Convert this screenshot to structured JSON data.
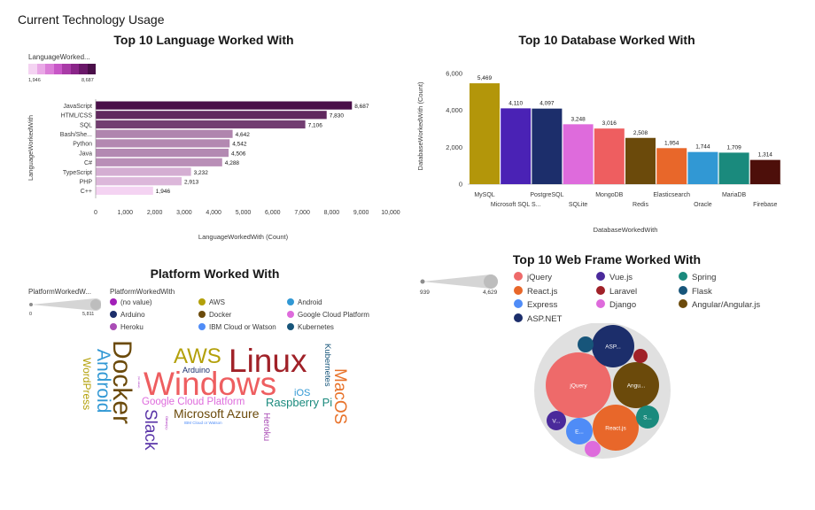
{
  "dashboard_title": "Current Technology Usage",
  "language_chart": {
    "title": "Top 10 Language Worked With",
    "legend_title": "LanguageWorked...",
    "legend_min": "1,946",
    "legend_max": "8,687",
    "ylabel": "LanguageWorkedWith",
    "xlabel": "LanguageWorkedWith (Count)"
  },
  "database_chart": {
    "title": "Top 10 Database Worked With",
    "ylabel": "DatabaseWorkedWith (Count)",
    "xlabel": "DatabaseWorkedWith"
  },
  "platform_chart": {
    "title": "Platform Worked With",
    "size_legend_title": "PlatformWorkedW...",
    "size_min": "0",
    "size_max": "5,811",
    "color_legend_title": "PlatformWorkedWith",
    "legend": [
      {
        "label": "(no value)",
        "color": "#a21fb8"
      },
      {
        "label": "AWS",
        "color": "#b3a00a"
      },
      {
        "label": "Android",
        "color": "#3198d4"
      },
      {
        "label": "Arduino",
        "color": "#1c2e6b"
      },
      {
        "label": "Docker",
        "color": "#6b4a0b"
      },
      {
        "label": "Google Cloud Platform",
        "color": "#de6bdc"
      },
      {
        "label": "Heroku",
        "color": "#a94cb5"
      },
      {
        "label": "IBM Cloud or Watson",
        "color": "#4f8cf7"
      },
      {
        "label": "Kubernetes",
        "color": "#17557a"
      }
    ],
    "words": [
      {
        "text": "Linux",
        "color": "#a02128"
      },
      {
        "text": "Windows",
        "color": "#ee5e60"
      },
      {
        "text": "Docker",
        "color": "#6b4a0b"
      },
      {
        "text": "Android",
        "color": "#3198d4"
      },
      {
        "text": "AWS",
        "color": "#b3a00a"
      },
      {
        "text": "MacOS",
        "color": "#e8722a"
      },
      {
        "text": "Slack",
        "color": "#5a35a8"
      },
      {
        "text": "Microsoft Azure",
        "color": "#6b4a0b"
      },
      {
        "text": "Google Cloud Platform",
        "color": "#de6bdc"
      },
      {
        "text": "Raspberry Pi",
        "color": "#1a8a7d"
      },
      {
        "text": "WordPress",
        "color": "#b3a00a"
      },
      {
        "text": "Kubernetes",
        "color": "#17557a"
      },
      {
        "text": "Heroku",
        "color": "#a94cb5"
      },
      {
        "text": "Arduino",
        "color": "#1c2e6b"
      },
      {
        "text": "iOS",
        "color": "#3198d4"
      },
      {
        "text": "IBM Cloud or Watson",
        "color": "#4f8cf7"
      },
      {
        "text": "Other(s):",
        "color": "#a21fb8"
      },
      {
        "text": "(no value)",
        "color": "#a21fb8"
      }
    ]
  },
  "webframe_chart": {
    "title": "Top 10 Web Frame Worked With",
    "size_min": "939",
    "size_max": "4,629",
    "legend": [
      {
        "label": "jQuery",
        "color": "#ee6a6a"
      },
      {
        "label": "Vue.js",
        "color": "#4a2a9b"
      },
      {
        "label": "Spring",
        "color": "#1a8a7d"
      },
      {
        "label": "React.js",
        "color": "#e8672a"
      },
      {
        "label": "Laravel",
        "color": "#a02128"
      },
      {
        "label": "Flask",
        "color": "#17557a"
      },
      {
        "label": "Express",
        "color": "#4f8cf7"
      },
      {
        "label": "Django",
        "color": "#de6bdc"
      },
      {
        "label": "Angular/Angular.js",
        "color": "#6b4a0b"
      },
      {
        "label": "ASP.NET",
        "color": "#1c2e6b"
      }
    ],
    "bubble_labels": {
      "jquery": "jQuery",
      "aspnet": "ASP...",
      "angular": "Angu...",
      "react": "React.js",
      "spring": "S...",
      "vue": "V...",
      "express": "E..."
    }
  },
  "chart_data": [
    {
      "type": "bar",
      "orientation": "horizontal",
      "title": "Top 10 Language Worked With",
      "xlabel": "LanguageWorkedWith (Count)",
      "ylabel": "LanguageWorkedWith",
      "categories": [
        "JavaScript",
        "HTML/CSS",
        "SQL",
        "Bash/She...",
        "Python",
        "Java",
        "C#",
        "TypeScript",
        "PHP",
        "C++"
      ],
      "values": [
        8687,
        7830,
        7106,
        4642,
        4542,
        4506,
        4288,
        3232,
        2913,
        1946
      ],
      "value_labels": [
        "8,687",
        "7,830",
        "7,106",
        "4,642",
        "4,542",
        "4,506",
        "4,288",
        "3,232",
        "2,913",
        "1,946"
      ],
      "xlim": [
        0,
        10000
      ],
      "xticks": [
        "0",
        "1,000",
        "2,000",
        "3,000",
        "4,000",
        "5,000",
        "6,000",
        "7,000",
        "8,000",
        "9,000",
        "10,000"
      ],
      "color_scale": [
        "#f4d3f2",
        "#4a0f49"
      ]
    },
    {
      "type": "bar",
      "title": "Top 10 Database Worked With",
      "xlabel": "DatabaseWorkedWith",
      "ylabel": "DatabaseWorkedWith (Count)",
      "categories": [
        "MySQL",
        "Microsoft SQL S...",
        "PostgreSQL",
        "SQLite",
        "MongoDB",
        "Redis",
        "Elasticsearch",
        "Oracle",
        "MariaDB",
        "Firebase"
      ],
      "values": [
        5469,
        4110,
        4097,
        3248,
        3016,
        2508,
        1954,
        1744,
        1709,
        1314
      ],
      "value_labels": [
        "5,469",
        "4,110",
        "4,097",
        "3,248",
        "3,016",
        "2,508",
        "1,954",
        "1,744",
        "1,709",
        "1,314"
      ],
      "colors": [
        "#b3960a",
        "#4a22b5",
        "#1c2e6b",
        "#de6bdc",
        "#ee5e60",
        "#6b4a0b",
        "#e8672a",
        "#3198d4",
        "#1a8a7d",
        "#4d0f0a"
      ],
      "ylim": [
        0,
        6000
      ],
      "yticks": [
        "0",
        "2,000",
        "4,000",
        "6,000"
      ]
    },
    {
      "type": "bubble",
      "title": "Top 10 Web Frame Worked With",
      "categories": [
        "jQuery",
        "ASP.NET",
        "Angular/Angular.js",
        "React.js",
        "Spring",
        "Vue.js",
        "Express",
        "Django",
        "Laravel",
        "Flask"
      ]
    }
  ]
}
